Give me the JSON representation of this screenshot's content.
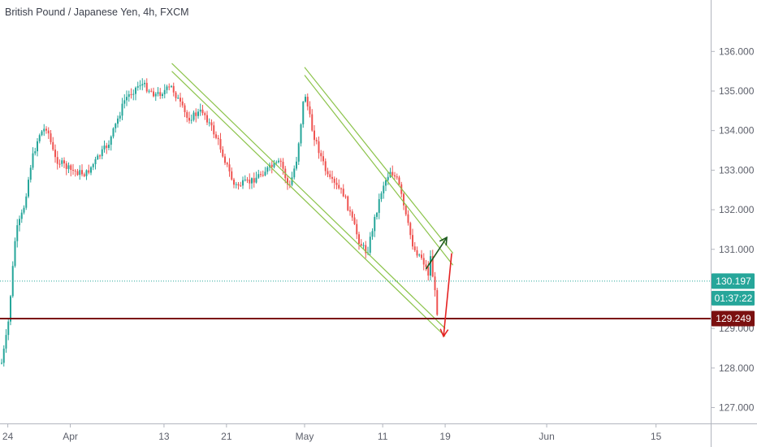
{
  "header": {
    "symbol_title": "British Pound / Japanese Yen, 4h, FXCM"
  },
  "chart_data": {
    "type": "candlestick",
    "title": "British Pound / Japanese Yen, 4h, FXCM",
    "ylim": [
      126.6,
      137.3
    ],
    "y_ticks": [
      "136.000",
      "135.000",
      "134.000",
      "133.000",
      "132.000",
      "131.000",
      "129.000",
      "128.000",
      "127.000"
    ],
    "y_tick_values": [
      136,
      135,
      134,
      133,
      132,
      131,
      129,
      128,
      127
    ],
    "x_ticks": [
      "24",
      "Apr",
      "13",
      "21",
      "May",
      "11",
      "19",
      "Jun",
      "15"
    ],
    "x_tick_dates": [
      "2020-03-24",
      "2020-04-01",
      "2020-04-13",
      "2020-04-21",
      "2020-05-01",
      "2020-05-11",
      "2020-05-19",
      "2020-06-01",
      "2020-06-15"
    ],
    "date_range": [
      "2020-03-23",
      "2020-06-22"
    ],
    "price_path": [
      {
        "date": "2020-03-23",
        "price": 127.9
      },
      {
        "date": "2020-03-24",
        "price": 129.0
      },
      {
        "date": "2020-03-25",
        "price": 131.4
      },
      {
        "date": "2020-03-26",
        "price": 132.0
      },
      {
        "date": "2020-03-27",
        "price": 133.2
      },
      {
        "date": "2020-03-28",
        "price": 133.9
      },
      {
        "date": "2020-03-29",
        "price": 134.1
      },
      {
        "date": "2020-03-30",
        "price": 133.3
      },
      {
        "date": "2020-04-01",
        "price": 133.0
      },
      {
        "date": "2020-04-03",
        "price": 132.9
      },
      {
        "date": "2020-04-06",
        "price": 133.7
      },
      {
        "date": "2020-04-08",
        "price": 134.8
      },
      {
        "date": "2020-04-10",
        "price": 135.2
      },
      {
        "date": "2020-04-12",
        "price": 134.9
      },
      {
        "date": "2020-04-14",
        "price": 135.1
      },
      {
        "date": "2020-04-16",
        "price": 134.3
      },
      {
        "date": "2020-04-18",
        "price": 134.5
      },
      {
        "date": "2020-04-20",
        "price": 133.7
      },
      {
        "date": "2020-04-22",
        "price": 132.6
      },
      {
        "date": "2020-04-24",
        "price": 132.7
      },
      {
        "date": "2020-04-26",
        "price": 133.0
      },
      {
        "date": "2020-04-28",
        "price": 133.2
      },
      {
        "date": "2020-04-29",
        "price": 132.5
      },
      {
        "date": "2020-04-30",
        "price": 133.3
      },
      {
        "date": "2020-05-01",
        "price": 135.0
      },
      {
        "date": "2020-05-02",
        "price": 134.0
      },
      {
        "date": "2020-05-04",
        "price": 132.8
      },
      {
        "date": "2020-05-06",
        "price": 132.4
      },
      {
        "date": "2020-05-08",
        "price": 131.2
      },
      {
        "date": "2020-05-09",
        "price": 130.9
      },
      {
        "date": "2020-05-10",
        "price": 131.8
      },
      {
        "date": "2020-05-11",
        "price": 132.6
      },
      {
        "date": "2020-05-12",
        "price": 133.0
      },
      {
        "date": "2020-05-13",
        "price": 132.7
      },
      {
        "date": "2020-05-14",
        "price": 131.8
      },
      {
        "date": "2020-05-15",
        "price": 131.0
      },
      {
        "date": "2020-05-16",
        "price": 130.8
      },
      {
        "date": "2020-05-17",
        "price": 130.3
      },
      {
        "date": "2020-05-17",
        "price": 131.0
      },
      {
        "date": "2020-05-18",
        "price": 129.4
      },
      {
        "date": "2020-05-18",
        "price": 130.0
      }
    ],
    "channel_lines": [
      {
        "points": [
          {
            "date": "2020-04-14",
            "price": 135.7
          },
          {
            "date": "2020-05-19",
            "price": 129.0
          }
        ]
      },
      {
        "points": [
          {
            "date": "2020-04-14",
            "price": 135.5
          },
          {
            "date": "2020-05-19",
            "price": 128.8
          }
        ]
      },
      {
        "points": [
          {
            "date": "2020-05-01",
            "price": 135.6
          },
          {
            "date": "2020-05-20",
            "price": 130.9
          }
        ]
      },
      {
        "points": [
          {
            "date": "2020-05-01",
            "price": 135.4
          },
          {
            "date": "2020-05-20",
            "price": 130.6
          }
        ]
      }
    ],
    "arrows": [
      {
        "color": "#1e5a1e",
        "from": {
          "date": "2020-05-18",
          "price": 130.5
        },
        "to": {
          "date": "2020-05-19",
          "price": 131.3
        }
      },
      {
        "color": "#e52222",
        "from": {
          "date": "2020-05-19",
          "price": 130.9
        },
        "to": {
          "date": "2020-05-19",
          "price": 128.8
        }
      }
    ],
    "current_price": {
      "label": "130.197",
      "value": 130.197,
      "countdown": "01:37:22",
      "color": "#26a69a"
    },
    "horizontal_level": {
      "label": "129.249",
      "value": 129.249,
      "color": "#7b1010"
    },
    "colors": {
      "up": "#26a69a",
      "down": "#ef5350",
      "channel": "#8bc34a",
      "axis": "#5d606b",
      "grid": "none"
    },
    "grid": false
  }
}
